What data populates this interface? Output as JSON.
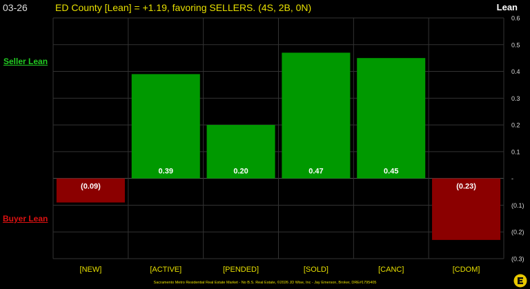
{
  "header": {
    "date": "03-26",
    "title": "ED County [Lean] = +1.19, favoring SELLERS. (4S, 2B, 0N)",
    "right_label": "Lean"
  },
  "side_labels": {
    "seller": "Seller Lean",
    "buyer": "Buyer Lean"
  },
  "footer": "Sacramento Metro Residential Real Estate Market - No B.S. Real Estate, ©2026 JD Wise, Inc - Jay Emerson, Broker, DRE#1795405",
  "colors": {
    "positive": "#009900",
    "negative": "#8b0000",
    "grid": "#333333"
  },
  "chart_data": {
    "type": "bar",
    "categories": [
      "[NEW]",
      "[ACTIVE]",
      "[PENDED]",
      "[SOLD]",
      "[CANC]",
      "[CDOM]"
    ],
    "values": [
      -0.09,
      0.39,
      0.2,
      0.47,
      0.45,
      -0.23
    ],
    "data_labels": [
      "(0.09)",
      "0.39",
      "0.20",
      "0.47",
      "0.45",
      "(0.23)"
    ],
    "ylim": [
      -0.3,
      0.6
    ],
    "yticks": [
      0.6,
      0.5,
      0.4,
      0.3,
      0.2,
      0.1,
      0,
      -0.1,
      -0.2,
      -0.3
    ],
    "ytick_labels": [
      "0.6",
      "0.5",
      "0.4",
      "0.3",
      "0.2",
      "0.1",
      "-",
      "(0.1)",
      "(0.2)",
      "(0.3)"
    ],
    "grid": true,
    "ylabel": "Lean"
  }
}
